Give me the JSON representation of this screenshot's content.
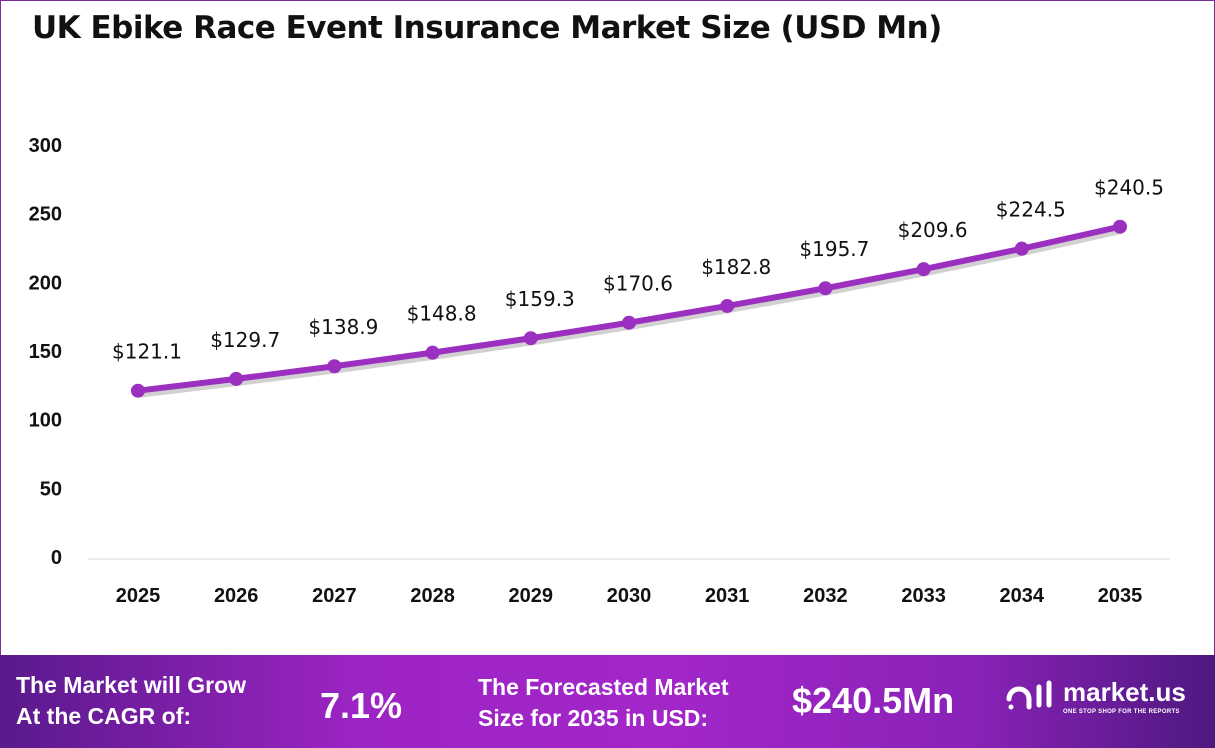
{
  "chart_data": {
    "type": "line",
    "title": "UK Ebike Race Event Insurance Market Size (USD Mn)",
    "categories": [
      "2025",
      "2026",
      "2027",
      "2028",
      "2029",
      "2030",
      "2031",
      "2032",
      "2033",
      "2034",
      "2035"
    ],
    "values": [
      121.1,
      129.7,
      138.9,
      148.8,
      159.3,
      170.6,
      182.8,
      195.7,
      209.6,
      224.5,
      240.5
    ],
    "data_labels": [
      "$121.1",
      "$129.7",
      "$138.9",
      "$148.8",
      "$159.3",
      "$170.6",
      "$182.8",
      "$195.7",
      "$209.6",
      "$224.5",
      "$240.5"
    ],
    "yticks": [
      0,
      50,
      100,
      150,
      200,
      250,
      300
    ],
    "ylim": [
      0,
      300
    ],
    "grid": false,
    "line_color": "#9b2fc0"
  },
  "footer": {
    "cagr_label_1": "The Market will Grow",
    "cagr_label_2": "At the CAGR of:",
    "cagr_value": "7.1%",
    "forecast_label_1": "The Forecasted Market",
    "forecast_label_2": "Size for 2035 in USD:",
    "forecast_value": "$240.5Mn",
    "logo_name": "market.us",
    "logo_tagline": "ONE STOP SHOP FOR THE REPORTS"
  }
}
